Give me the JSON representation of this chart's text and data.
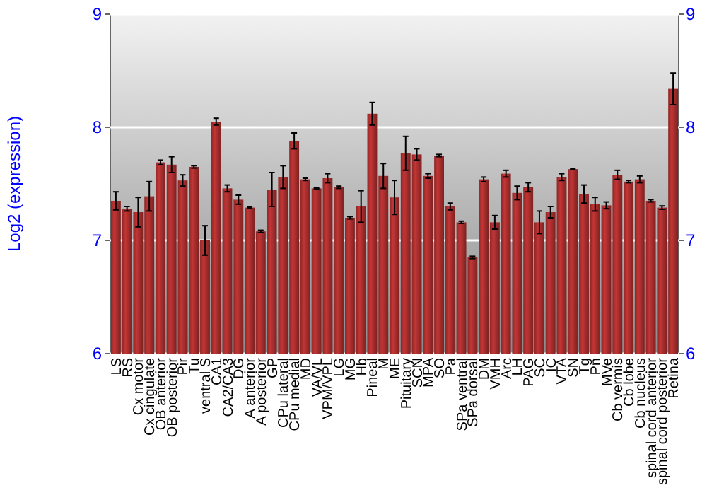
{
  "chart_data": {
    "type": "bar",
    "ylabel": "Log2 (expression)",
    "categories": [
      "LS",
      "RS",
      "Cx motor",
      "Cx cingulate",
      "OB anterior",
      "OB posterior",
      "Pir",
      "Tu",
      "ventral S",
      "CA1",
      "CA2/CA3",
      "DG",
      "A anterior",
      "A posterior",
      "GP",
      "CPu lateral",
      "CPu medial",
      "MD",
      "VA/VL",
      "VPM/VPL",
      "LG",
      "MG",
      "Hb",
      "Pineal",
      "M",
      "ME",
      "Pituitary",
      "SCN",
      "MPA",
      "SO",
      "Pa",
      "SPa ventral",
      "SPa dorsal",
      "DM",
      "VMH",
      "Arc",
      "LH",
      "PAG",
      "SC",
      "IC",
      "VTA",
      "SN",
      "Tg",
      "Pn",
      "MVe",
      "Cb vermis",
      "Cb lobe",
      "Cb nucleus",
      "spinal cord anterior",
      "spinal cord posterior",
      "Retina"
    ],
    "values": [
      7.35,
      7.28,
      7.25,
      7.39,
      7.69,
      7.67,
      7.53,
      7.65,
      7.0,
      8.05,
      7.46,
      7.36,
      7.29,
      7.08,
      7.45,
      7.56,
      7.88,
      7.54,
      7.46,
      7.55,
      7.47,
      7.2,
      7.3,
      8.12,
      7.57,
      7.38,
      7.77,
      7.76,
      7.57,
      7.75,
      7.3,
      7.16,
      6.85,
      7.54,
      7.16,
      7.59,
      7.42,
      7.47,
      7.16,
      7.25,
      7.56,
      7.63,
      7.41,
      7.32,
      7.31,
      7.58,
      7.52,
      7.54,
      7.35,
      7.29,
      8.34
    ],
    "errors": [
      0.08,
      0.02,
      0.13,
      0.13,
      0.02,
      0.07,
      0.05,
      0.01,
      0.13,
      0.03,
      0.03,
      0.04,
      0.005,
      0.01,
      0.15,
      0.1,
      0.07,
      0.01,
      0.005,
      0.04,
      0.01,
      0.01,
      0.14,
      0.1,
      0.11,
      0.15,
      0.15,
      0.05,
      0.02,
      0.01,
      0.03,
      0.01,
      0.01,
      0.02,
      0.06,
      0.03,
      0.06,
      0.04,
      0.1,
      0.05,
      0.03,
      0.005,
      0.08,
      0.06,
      0.03,
      0.04,
      0.01,
      0.03,
      0.01,
      0.015,
      0.14
    ],
    "color": "#b03030",
    "ylim": [
      6,
      9
    ],
    "yticks": [
      6,
      7,
      8,
      9
    ],
    "y2lim": [
      6,
      9
    ],
    "y2ticks": [
      6,
      7,
      8,
      9
    ],
    "grid": "y"
  }
}
